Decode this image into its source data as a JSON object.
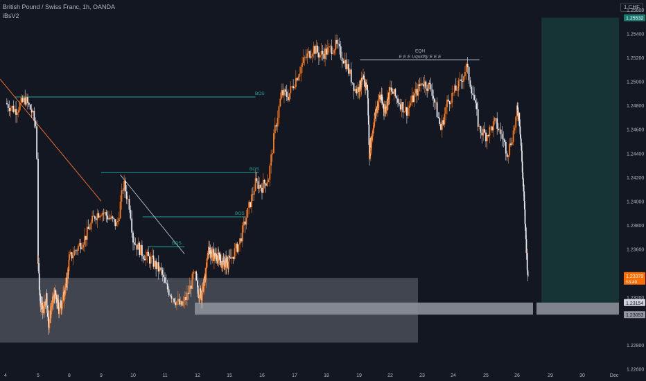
{
  "header": {
    "title": "British Pound / Swiss Franc, 1h, OANDA",
    "indicator": "iBsV2",
    "currency_button": "1 CHF"
  },
  "colors": {
    "background": "#131722",
    "axis_text": "#b2b5be",
    "candle_up": "#ff7b1c",
    "candle_down": "#e7e9ee",
    "bos_line": "#26a69a",
    "tp_zone": "#163436",
    "demand_zone": "#4a4d57",
    "entry_zone": "#8b8f98",
    "current_price_tag": "#ff6d00",
    "tp_price_tag": "#1b7a70"
  },
  "chart_data": {
    "type": "candlestick",
    "title": "British Pound / Swiss Franc, 1h, OANDA",
    "xlabel": "",
    "ylabel": "",
    "ylim": [
      1.2258,
      1.2568
    ],
    "grid": false,
    "y_ticks": [
      "1.25600",
      "1.25400",
      "1.25200",
      "1.25000",
      "1.24800",
      "1.24600",
      "1.24400",
      "1.24200",
      "1.24000",
      "1.23800",
      "1.23600",
      "1.23200",
      "1.22800",
      "1.22600"
    ],
    "x_ticks": [
      "4",
      "5",
      "8",
      "9",
      "10",
      "11",
      "12",
      "15",
      "16",
      "17",
      "18",
      "19",
      "22",
      "23",
      "24",
      "25",
      "26",
      "29",
      "30",
      "Dec"
    ],
    "path": [
      [
        "4",
        1.2482
      ],
      [
        "4.3",
        1.2476
      ],
      [
        "4.6",
        1.2485
      ],
      [
        "4.8",
        1.2475
      ],
      [
        "4.95",
        1.246
      ],
      [
        "5",
        1.235
      ],
      [
        "5.2",
        1.2318
      ],
      [
        "5.5",
        1.2308
      ],
      [
        "5.8",
        1.2322
      ],
      [
        "6",
        1.2296
      ],
      [
        "6.3",
        1.2312
      ],
      [
        "6.6",
        1.2322
      ],
      [
        "7",
        1.231
      ],
      [
        "7.4",
        1.2318
      ],
      [
        "7.8",
        1.2335
      ],
      [
        "8",
        1.2352
      ],
      [
        "8.5",
        1.237
      ],
      [
        "8.8",
        1.2388
      ],
      [
        "9",
        1.2392
      ],
      [
        "9.3",
        1.2385
      ],
      [
        "9.5",
        1.238
      ],
      [
        "9.7",
        1.2415
      ],
      [
        "9.9",
        1.2395
      ],
      [
        "10",
        1.2368
      ],
      [
        "10.3",
        1.2356
      ],
      [
        "10.6",
        1.235
      ],
      [
        "10.9",
        1.234
      ],
      [
        "11",
        1.233
      ],
      [
        "11.3",
        1.2318
      ],
      [
        "11.5",
        1.2312
      ],
      [
        "11.7",
        1.2322
      ],
      [
        "11.9",
        1.234
      ],
      [
        "12",
        1.2325
      ],
      [
        "12.4",
        1.2322
      ],
      [
        "12.8",
        1.234
      ],
      [
        "13",
        1.236
      ],
      [
        "13.5",
        1.2355
      ],
      [
        "14",
        1.2352
      ],
      [
        "14.5",
        1.2348
      ],
      [
        "15",
        1.235
      ],
      [
        "15.3",
        1.2365
      ],
      [
        "15.6",
        1.2395
      ],
      [
        "15.8",
        1.2415
      ],
      [
        "16",
        1.2412
      ],
      [
        "16.2",
        1.242
      ],
      [
        "16.4",
        1.246
      ],
      [
        "16.6",
        1.249
      ],
      [
        "16.8",
        1.2488
      ],
      [
        "17",
        1.25
      ],
      [
        "17.3",
        1.2518
      ],
      [
        "17.6",
        1.2528
      ],
      [
        "17.8",
        1.2522
      ],
      [
        "18",
        1.2525
      ],
      [
        "18.3",
        1.253
      ],
      [
        "18.6",
        1.2515
      ],
      [
        "18.9",
        1.2492
      ],
      [
        "19",
        1.2495
      ],
      [
        "19.4",
        1.25
      ],
      [
        "19.8",
        1.2495
      ],
      [
        "20",
        1.244
      ],
      [
        "20.5",
        1.247
      ],
      [
        "21",
        1.2488
      ],
      [
        "21.5",
        1.2476
      ],
      [
        "22",
        1.2493
      ],
      [
        "22.5",
        1.2475
      ],
      [
        "22.8",
        1.249
      ],
      [
        "23",
        1.25
      ],
      [
        "23.3",
        1.2494
      ],
      [
        "23.6",
        1.246
      ],
      [
        "23.8",
        1.2482
      ],
      [
        "24",
        1.249
      ],
      [
        "24.2",
        1.2498
      ],
      [
        "24.4",
        1.2512
      ],
      [
        "24.6",
        1.249
      ],
      [
        "24.8",
        1.246
      ],
      [
        "25",
        1.2455
      ],
      [
        "25.3",
        1.2466
      ],
      [
        "25.5",
        1.2455
      ],
      [
        "25.7",
        1.244
      ],
      [
        "25.9",
        1.246
      ],
      [
        "26",
        1.2475
      ],
      [
        "26.2",
        1.2472
      ],
      [
        "26.4",
        1.244
      ],
      [
        "26.6",
        1.2405
      ],
      [
        "26.8",
        1.2368
      ],
      [
        "27",
        1.2334
      ]
    ],
    "annotations": {
      "bos_labels": [
        "BOS",
        "BOS",
        "BOS",
        "BOS"
      ],
      "eqh_label": "EQH",
      "liquidity_label": "E E E Liquidity E E E",
      "price_tags": [
        "1.25532",
        "1.23379",
        "53:49",
        "1.23154",
        "1.23053"
      ]
    }
  }
}
